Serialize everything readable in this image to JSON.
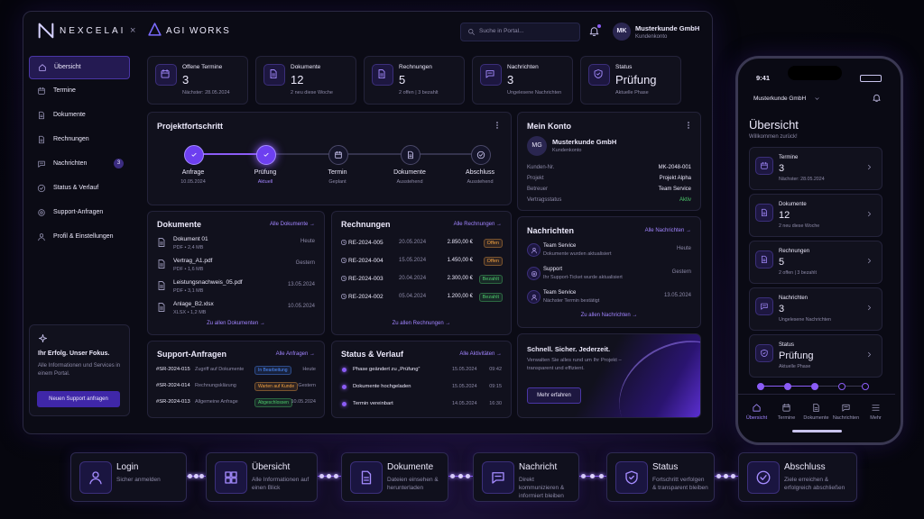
{
  "header": {
    "brand": "NEXCELAI",
    "separator": "×",
    "partner": "AGI WORKS",
    "search_placeholder": "Suche in Portal...",
    "avatar": "MK",
    "account_name": "Musterkunde GmbH",
    "account_type": "Kundenkonto"
  },
  "sidebar": {
    "nav": [
      {
        "label": "Übersicht"
      },
      {
        "label": "Termine"
      },
      {
        "label": "Dokumente"
      },
      {
        "label": "Rechnungen"
      },
      {
        "label": "Nachrichten",
        "badge": "3"
      },
      {
        "label": "Status & Verlauf"
      },
      {
        "label": "Support-Anfragen"
      },
      {
        "label": "Profil & Einstellungen"
      }
    ],
    "promo": {
      "title": "Ihr Erfolg. Unser Fokus.",
      "text": "Alle Informationen und Services in einem Portal.",
      "button": "Neuen Support anfragen"
    }
  },
  "stats": [
    {
      "label": "Offene Termine",
      "value": "3",
      "sub": "Nächster: 28.05.2024"
    },
    {
      "label": "Dokumente",
      "value": "12",
      "sub": "2 neu diese Woche"
    },
    {
      "label": "Rechnungen",
      "value": "5",
      "sub": "2 offen | 3 bezahlt"
    },
    {
      "label": "Nachrichten",
      "value": "3",
      "sub": "Ungelesene Nachrichten"
    },
    {
      "label": "Status",
      "value": "Prüfung",
      "sub": "Aktuelle Phase"
    }
  ],
  "progress": {
    "title": "Projektfortschritt",
    "steps": [
      {
        "label": "Anfrage",
        "sub": "10.05.2024"
      },
      {
        "label": "Prüfung",
        "sub": "Aktuell"
      },
      {
        "label": "Termin",
        "sub": "Geplant"
      },
      {
        "label": "Dokumente",
        "sub": "Ausstehend"
      },
      {
        "label": "Abschluss",
        "sub": "Ausstehend"
      }
    ]
  },
  "account": {
    "title": "Mein Konto",
    "avatar": "MG",
    "name": "Musterkunde GmbH",
    "type": "Kundenkonto",
    "rows": [
      [
        "Kunden-Nr.",
        "MK-2048-001"
      ],
      [
        "Projekt",
        "Projekt Alpha"
      ],
      [
        "Betreuer",
        "Team Service"
      ],
      [
        "Vertragsstatus",
        "Aktiv"
      ]
    ]
  },
  "documents": {
    "title": "Dokumente",
    "link": "Alle Dokumente →",
    "footer": "Zu allen Dokumenten →",
    "rows": [
      {
        "name": "Dokument 01",
        "meta": "PDF • 2,4 MB",
        "date": "Heute"
      },
      {
        "name": "Vertrag_A1.pdf",
        "meta": "PDF • 1,6 MB",
        "date": "Gestern"
      },
      {
        "name": "Leistungsnachweis_05.pdf",
        "meta": "PDF • 3,1 MB",
        "date": "13.05.2024"
      },
      {
        "name": "Anlage_B2.xlsx",
        "meta": "XLSX • 1,2 MB",
        "date": "10.05.2024"
      }
    ]
  },
  "invoices": {
    "title": "Rechnungen",
    "link": "Alle Rechnungen →",
    "footer": "Zu allen Rechnungen →",
    "rows": [
      {
        "id": "RE-2024-005",
        "date": "20.05.2024",
        "amount": "2.850,00 €",
        "status": "Offen",
        "color": "#f0a040"
      },
      {
        "id": "RE-2024-004",
        "date": "15.05.2024",
        "amount": "1.450,00 €",
        "status": "Offen",
        "color": "#f0a040"
      },
      {
        "id": "RE-2024-003",
        "date": "20.04.2024",
        "amount": "2.300,00 €",
        "status": "Bezahlt",
        "color": "#4cc96a"
      },
      {
        "id": "RE-2024-002",
        "date": "05.04.2024",
        "amount": "1.200,00 €",
        "status": "Bezahlt",
        "color": "#4cc96a"
      }
    ]
  },
  "messages": {
    "title": "Nachrichten",
    "link": "Alle Nachrichten →",
    "footer": "Zu allen Nachrichten →",
    "rows": [
      {
        "from": "Team Service",
        "text": "Dokumente wurden aktualisiert",
        "date": "Heute"
      },
      {
        "from": "Support",
        "text": "Ihr Support-Ticket wurde aktualisiert",
        "date": "Gestern"
      },
      {
        "from": "Team Service",
        "text": "Nächster Termin bestätigt",
        "date": "13.05.2024"
      }
    ]
  },
  "support": {
    "title": "Support-Anfragen",
    "link": "Alle Anfragen →",
    "rows": [
      {
        "id": "#SR-2024-015",
        "subject": "Zugriff auf Dokumente",
        "status": "In Bearbeitung",
        "color": "#4d8dff",
        "date": "Heute"
      },
      {
        "id": "#SR-2024-014",
        "subject": "Rechnungsklärung",
        "status": "Warten auf Kunde",
        "color": "#f0a040",
        "date": "Gestern"
      },
      {
        "id": "#SR-2024-013",
        "subject": "Allgemeine Anfrage",
        "status": "Abgeschlossen",
        "color": "#4cc96a",
        "date": "10.05.2024"
      }
    ]
  },
  "activity": {
    "title": "Status & Verlauf",
    "link": "Alle Aktivitäten →",
    "rows": [
      {
        "text": "Phase geändert zu „Prüfung“",
        "date": "15.05.2024",
        "time": "09:42"
      },
      {
        "text": "Dokumente hochgeladen",
        "date": "15.05.2024",
        "time": "09:15"
      },
      {
        "text": "Termin vereinbart",
        "date": "14.05.2024",
        "time": "16:30"
      }
    ]
  },
  "promo_card": {
    "title": "Schnell. Sicher. Jederzeit.",
    "text": "Verwalten Sie alles rund um Ihr Projekt – transparent und effizient.",
    "button": "Mehr erfahren"
  },
  "phone": {
    "time": "9:41",
    "account": "Musterkunde GmbH",
    "title": "Übersicht",
    "subtitle": "Willkommen zurück!",
    "cards": [
      {
        "label": "Termine",
        "value": "3",
        "sub": "Nächster: 28.05.2024"
      },
      {
        "label": "Dokumente",
        "value": "12",
        "sub": "2 neu diese Woche"
      },
      {
        "label": "Rechnungen",
        "value": "5",
        "sub": "2 offen | 3 bezahlt"
      },
      {
        "label": "Nachrichten",
        "value": "3",
        "sub": "Ungelesene Nachrichten"
      },
      {
        "label": "Status",
        "value": "Prüfung",
        "sub": "Aktuelle Phase"
      }
    ],
    "tabs": [
      "Übersicht",
      "Termine",
      "Dokumente",
      "Nachrichten",
      "Mehr"
    ]
  },
  "flow": [
    {
      "title": "Login",
      "text": "Sicher anmelden"
    },
    {
      "title": "Übersicht",
      "text": "Alle Informationen auf einen Blick"
    },
    {
      "title": "Dokumente",
      "text": "Dateien einsehen & herunterladen"
    },
    {
      "title": "Nachricht",
      "text": "Direkt kommunizieren & informiert bleiben"
    },
    {
      "title": "Status",
      "text": "Fortschritt verfolgen & transparent bleiben"
    },
    {
      "title": "Abschluss",
      "text": "Ziele erreichen & erfolgreich abschließen"
    }
  ]
}
